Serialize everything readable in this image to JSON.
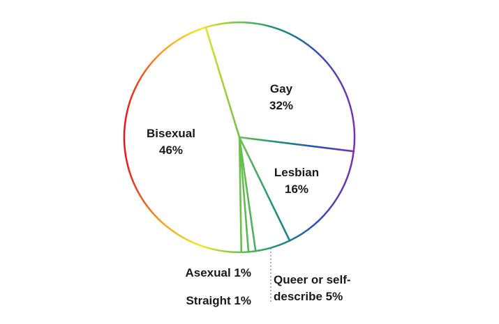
{
  "chart_data": {
    "type": "pie",
    "categories": [
      "Gay",
      "Lesbian",
      "Queer or self-describe",
      "Straight",
      "Asexual",
      "Bisexual"
    ],
    "values": [
      32,
      16,
      5,
      1,
      1,
      46
    ],
    "value_labels": [
      "32%",
      "16%",
      "5%",
      "1%",
      "1%",
      "46%"
    ],
    "outline_colors": [
      "#e8141b",
      "#f7a21b",
      "#f2e81e",
      "#6cc24a",
      "#1a8f7a",
      "#2b4fb8",
      "#7a2fb5"
    ]
  }
}
